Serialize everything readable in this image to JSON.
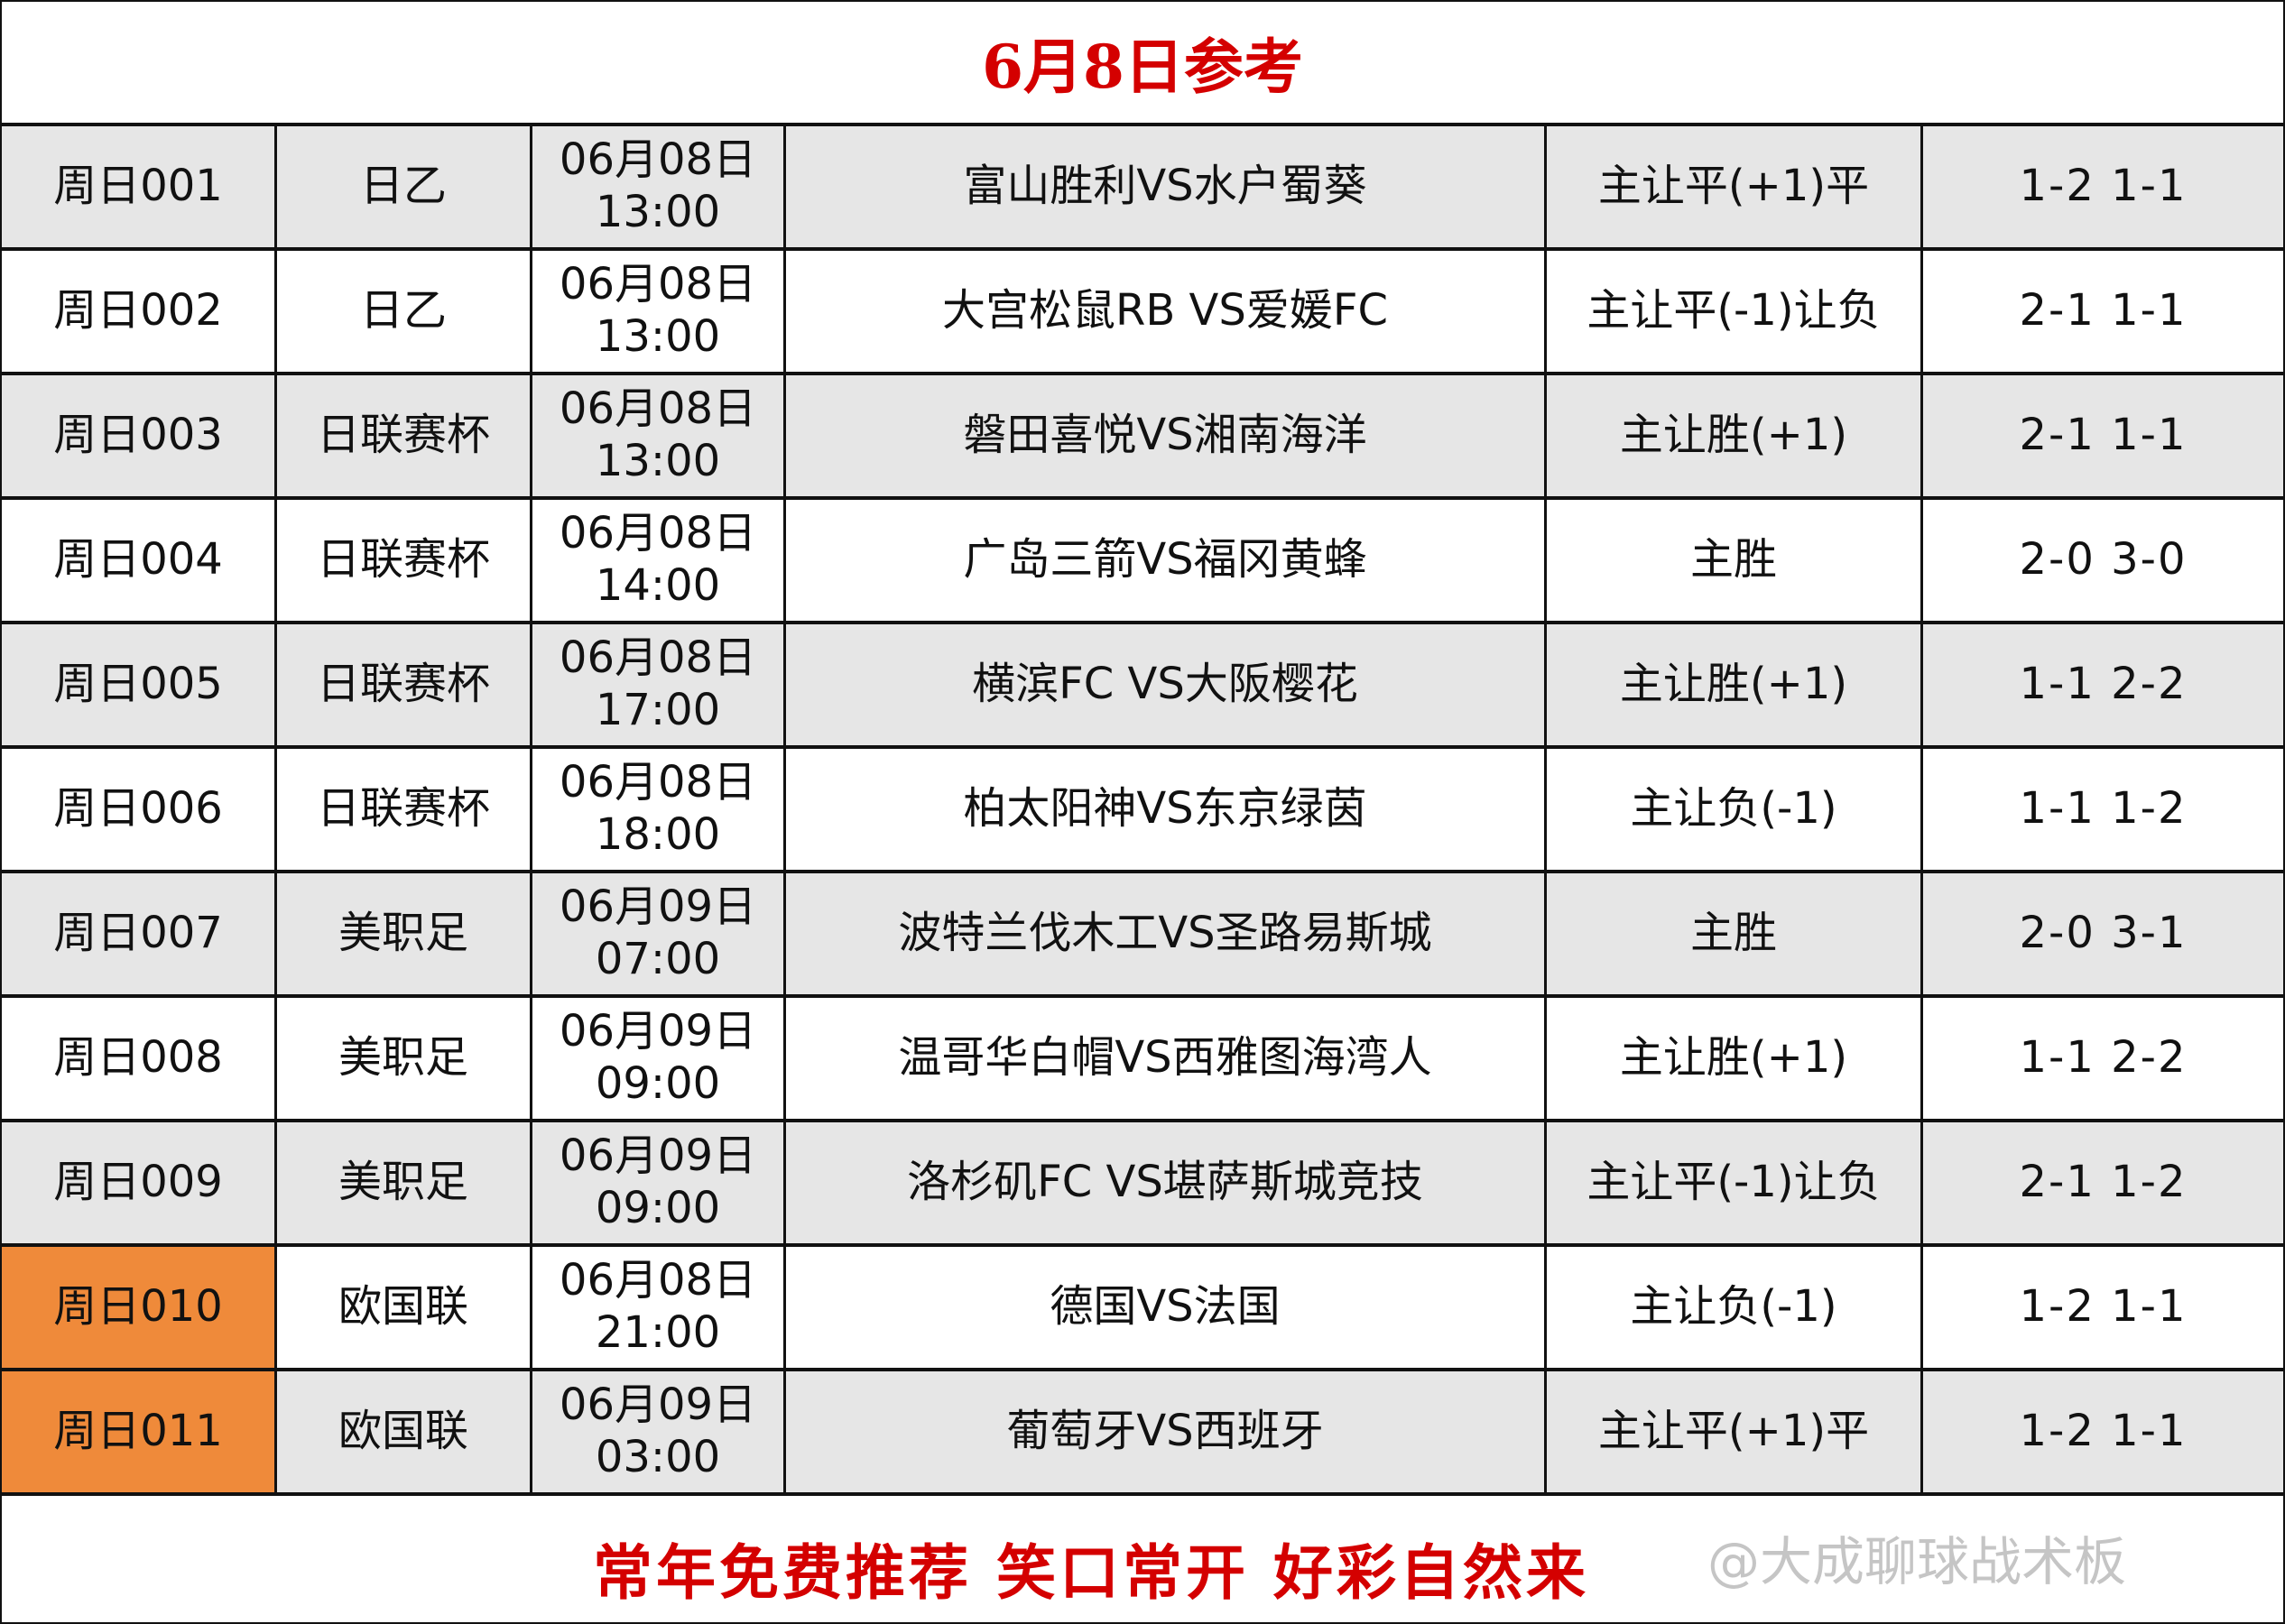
{
  "title": "6月8日参考",
  "rows": [
    {
      "id": "周日001",
      "league": "日乙",
      "date": "06月08日",
      "time": "13:00",
      "match": "富山胜利VS水户蜀葵",
      "pick": "主让平(+1)平",
      "score": "1-2 1-1",
      "highlight": false
    },
    {
      "id": "周日002",
      "league": "日乙",
      "date": "06月08日",
      "time": "13:00",
      "match": "大宫松鼠RB VS爱媛FC",
      "pick": "主让平(-1)让负",
      "score": "2-1 1-1",
      "highlight": false
    },
    {
      "id": "周日003",
      "league": "日联赛杯",
      "date": "06月08日",
      "time": "13:00",
      "match": "磐田喜悦VS湘南海洋",
      "pick": "主让胜(+1)",
      "score": "2-1 1-1",
      "highlight": false
    },
    {
      "id": "周日004",
      "league": "日联赛杯",
      "date": "06月08日",
      "time": "14:00",
      "match": "广岛三箭VS福冈黄蜂",
      "pick": "主胜",
      "score": "2-0 3-0",
      "highlight": false
    },
    {
      "id": "周日005",
      "league": "日联赛杯",
      "date": "06月08日",
      "time": "17:00",
      "match": "横滨FC VS大阪樱花",
      "pick": "主让胜(+1)",
      "score": "1-1 2-2",
      "highlight": false
    },
    {
      "id": "周日006",
      "league": "日联赛杯",
      "date": "06月08日",
      "time": "18:00",
      "match": "柏太阳神VS东京绿茵",
      "pick": "主让负(-1)",
      "score": "1-1 1-2",
      "highlight": false
    },
    {
      "id": "周日007",
      "league": "美职足",
      "date": "06月09日",
      "time": "07:00",
      "match": "波特兰伐木工VS圣路易斯城",
      "pick": "主胜",
      "score": "2-0 3-1",
      "highlight": false
    },
    {
      "id": "周日008",
      "league": "美职足",
      "date": "06月09日",
      "time": "09:00",
      "match": "温哥华白帽VS西雅图海湾人",
      "pick": "主让胜(+1)",
      "score": "1-1 2-2",
      "highlight": false
    },
    {
      "id": "周日009",
      "league": "美职足",
      "date": "06月09日",
      "time": "09:00",
      "match": "洛杉矶FC VS堪萨斯城竞技",
      "pick": "主让平(-1)让负",
      "score": "2-1 1-2",
      "highlight": false
    },
    {
      "id": "周日010",
      "league": "欧国联",
      "date": "06月08日",
      "time": "21:00",
      "match": "德国VS法国",
      "pick": "主让负(-1)",
      "score": "1-2 1-1",
      "highlight": true
    },
    {
      "id": "周日011",
      "league": "欧国联",
      "date": "06月09日",
      "time": "03:00",
      "match": "葡萄牙VS西班牙",
      "pick": "主让平(+1)平",
      "score": "1-2 1-1",
      "highlight": true
    }
  ],
  "footer": {
    "slogan": "常年免费推荐  笑口常开  好彩自然来",
    "watermark": "@大成聊球战术板"
  },
  "colors": {
    "title": "#d40000",
    "highlight": "#ef8a3a",
    "row_alt": "#e6e6e6"
  }
}
